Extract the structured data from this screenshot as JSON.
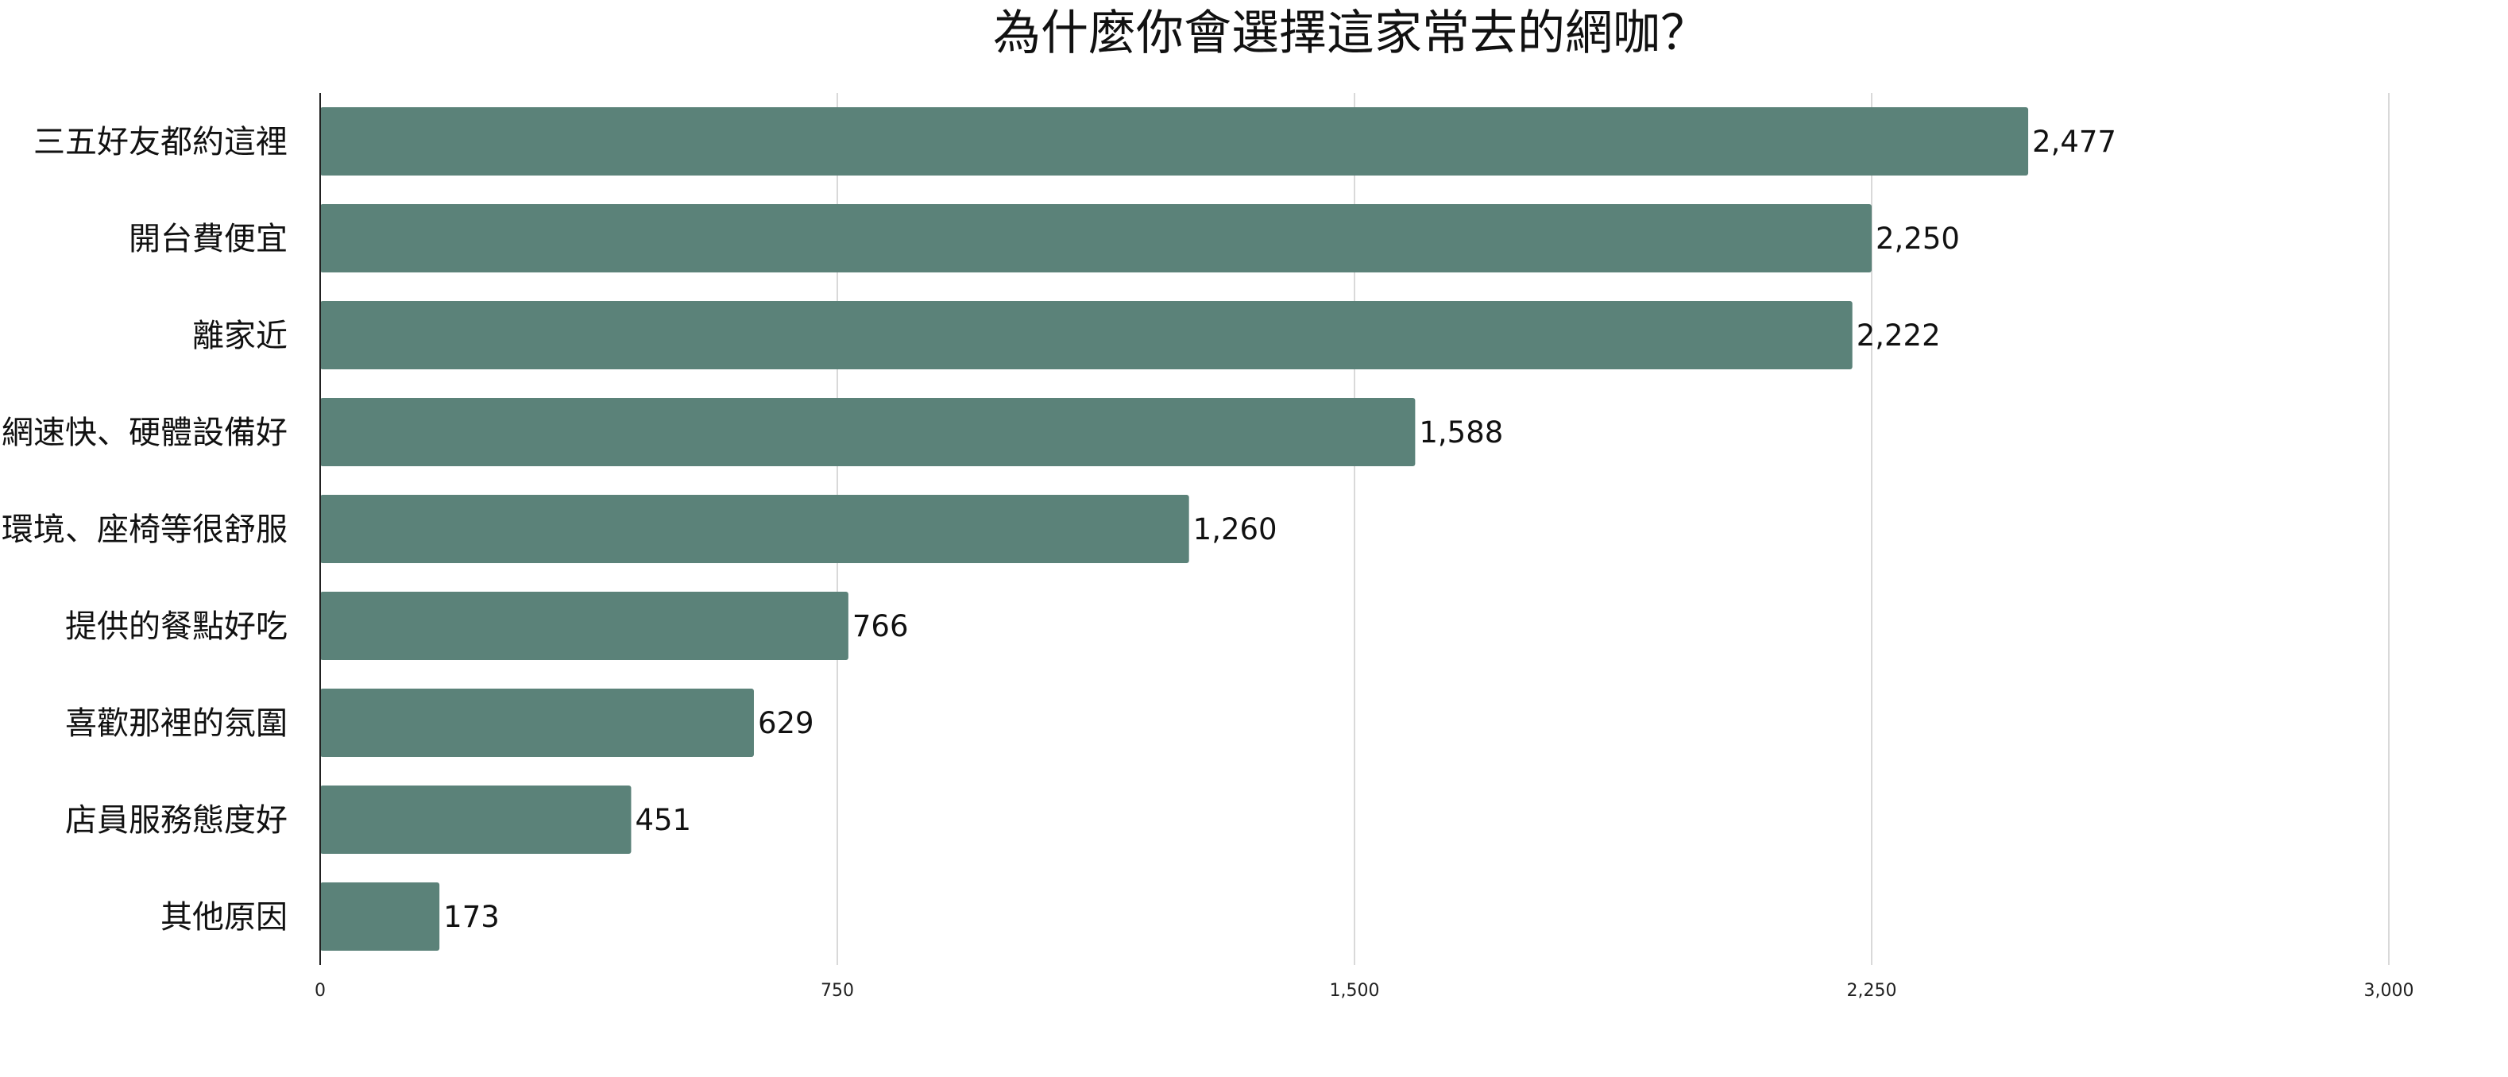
{
  "chart_data": {
    "type": "bar",
    "orientation": "horizontal",
    "title": "為什麼你會選擇這家常去的網咖？",
    "xlabel": "",
    "ylabel": "",
    "categories": [
      "三五好友都約這裡",
      "開台費便宜",
      "離家近",
      "網速快、硬體設備好",
      "環境、座椅等很舒服",
      "提供的餐點好吃",
      "喜歡那裡的氛圍",
      "店員服務態度好",
      "其他原因"
    ],
    "values": [
      2477,
      2250,
      2222,
      1588,
      1260,
      766,
      629,
      451,
      173
    ],
    "value_labels": [
      "2,477",
      "2,250",
      "2,222",
      "1,588",
      "1,260",
      "766",
      "629",
      "451",
      "173"
    ],
    "xlim": [
      0,
      3000
    ],
    "ticks": [
      0,
      750,
      1500,
      2250,
      3000
    ],
    "tick_labels": [
      "0",
      "750",
      "1,500",
      "2,250",
      "3,000"
    ],
    "grid": true,
    "legend": "none",
    "bar_color": "#5b8279"
  }
}
